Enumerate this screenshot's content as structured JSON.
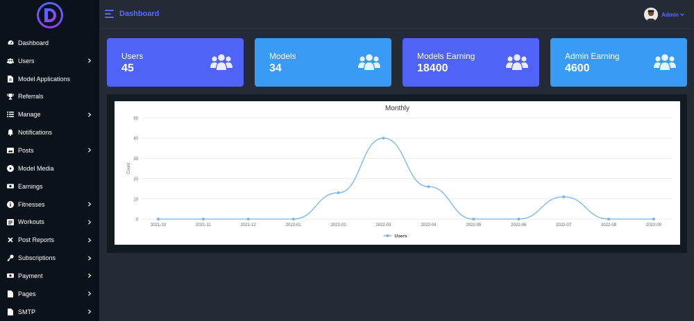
{
  "sidebar": {
    "items": [
      {
        "label": "Dashboard",
        "icon": "dashboard-icon",
        "has_children": false
      },
      {
        "label": "Users",
        "icon": "users-icon",
        "has_children": true
      },
      {
        "label": "Model Applications",
        "icon": "file-icon",
        "has_children": false
      },
      {
        "label": "Referrals",
        "icon": "trophy-icon",
        "has_children": false
      },
      {
        "label": "Manage",
        "icon": "list-icon",
        "has_children": true
      },
      {
        "label": "Notifications",
        "icon": "bell-icon",
        "has_children": false
      },
      {
        "label": "Posts",
        "icon": "image-icon",
        "has_children": true
      },
      {
        "label": "Model Media",
        "icon": "play-icon",
        "has_children": false
      },
      {
        "label": "Earnings",
        "icon": "money-icon",
        "has_children": false
      },
      {
        "label": "Fitnesses",
        "icon": "info-icon",
        "has_children": true
      },
      {
        "label": "Workouts",
        "icon": "workout-icon",
        "has_children": true
      },
      {
        "label": "Post Reports",
        "icon": "x-icon",
        "has_children": true
      },
      {
        "label": "Subscriptions",
        "icon": "key-icon",
        "has_children": true
      },
      {
        "label": "Payment",
        "icon": "money-icon",
        "has_children": true
      },
      {
        "label": "Pages",
        "icon": "page-icon",
        "has_children": true
      },
      {
        "label": "SMTP",
        "icon": "page-icon",
        "has_children": true
      }
    ]
  },
  "header": {
    "title": "Dashboard",
    "user_name": "Admin"
  },
  "cards": [
    {
      "label": "Users",
      "value": "45"
    },
    {
      "label": "Models",
      "value": "34"
    },
    {
      "label": "Models Earning",
      "value": "18400"
    },
    {
      "label": "Admin Earning",
      "value": "4600"
    }
  ],
  "colors": {
    "accent": "#5a6bff",
    "card_purple": "#4f63f7",
    "card_blue": "#389cf5",
    "sidebar_bg": "#0b1219",
    "page_bg": "#252b36",
    "line": "#74b5f0"
  },
  "chart_data": {
    "type": "line",
    "title": "Monthly",
    "ylabel": "Count",
    "xlabel": "",
    "ylim": [
      0,
      50
    ],
    "yticks": [
      0,
      10,
      20,
      30,
      40,
      50
    ],
    "categories": [
      "2021-10",
      "2021-11",
      "2021-12",
      "2022-01",
      "2022-02",
      "2022-03",
      "2022-04",
      "2022-05",
      "2022-06",
      "2022-07",
      "2022-08",
      "2022-09"
    ],
    "series": [
      {
        "name": "Users",
        "values": [
          0,
          0,
          0,
          0,
          13,
          40,
          16,
          0,
          0,
          11,
          0,
          0
        ]
      }
    ],
    "grid": true,
    "legend_position": "bottom"
  }
}
